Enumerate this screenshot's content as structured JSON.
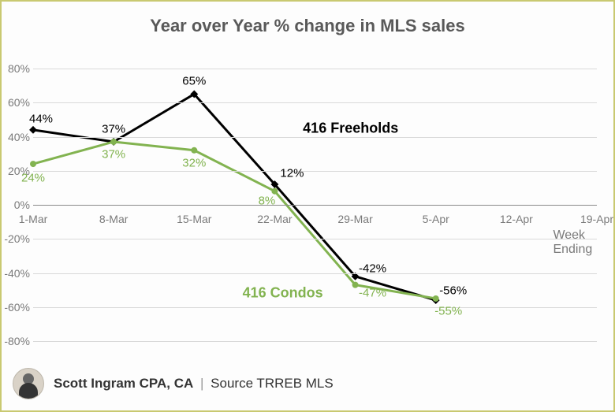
{
  "chart": {
    "type": "line",
    "title": "Year over Year % change in MLS sales",
    "title_fontsize": 22,
    "title_color": "#595959",
    "background_color": "#fdfdfd",
    "border_color": "#c9c971",
    "grid_color": "#d9d9d9",
    "zero_line_color": "#8a8a8a",
    "axis_label_color": "#7a7a7a",
    "axis_fontsize": 14,
    "x_axis_title": "Week Ending",
    "ylim": [
      -80,
      80
    ],
    "ytick_step": 20,
    "yticks": [
      "-80%",
      "-60%",
      "-40%",
      "-20%",
      "0%",
      "20%",
      "40%",
      "60%",
      "80%"
    ],
    "categories": [
      "1-Mar",
      "8-Mar",
      "15-Mar",
      "22-Mar",
      "29-Mar",
      "5-Apr",
      "12-Apr",
      "19-Apr"
    ],
    "series": [
      {
        "name": "416 Freeholds",
        "color": "#000000",
        "line_width": 3,
        "marker": "diamond",
        "marker_size": 7,
        "label_color": "#000000",
        "values": [
          44,
          37,
          65,
          12,
          -42,
          -56
        ],
        "data_labels": [
          "44%",
          "37%",
          "65%",
          "12%",
          "-42%",
          "-56%"
        ],
        "label_offsets": [
          [
            10,
            -14
          ],
          [
            0,
            -16
          ],
          [
            0,
            -16
          ],
          [
            22,
            -14
          ],
          [
            22,
            -10
          ],
          [
            22,
            -12
          ]
        ],
        "name_label_pos": [
          3.35,
          45
        ]
      },
      {
        "name": "416 Condos",
        "color": "#82b350",
        "line_width": 3,
        "marker": "circle",
        "marker_size": 6,
        "label_color": "#82b350",
        "values": [
          24,
          37,
          32,
          8,
          -47,
          -55
        ],
        "data_labels": [
          "24%",
          "37%",
          "32%",
          "8%",
          "-47%",
          "-55%"
        ],
        "label_offsets": [
          [
            0,
            18
          ],
          [
            0,
            16
          ],
          [
            0,
            16
          ],
          [
            -10,
            12
          ],
          [
            22,
            10
          ],
          [
            16,
            16
          ]
        ],
        "name_label_pos": [
          2.6,
          -52
        ]
      }
    ],
    "x_axis_title_pos": [
      6.7,
      -22
    ]
  },
  "footer": {
    "name": "Scott Ingram CPA, CA",
    "separator": "|",
    "source": "Source TRREB MLS"
  }
}
